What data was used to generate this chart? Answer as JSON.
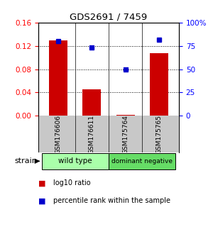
{
  "title": "GDS2691 / 7459",
  "samples": [
    "GSM176606",
    "GSM176611",
    "GSM175764",
    "GSM175765"
  ],
  "log10_ratio": [
    0.13,
    0.045,
    0.001,
    0.108
  ],
  "percentile_rank": [
    80,
    73,
    50,
    82
  ],
  "bar_color": "#cc0000",
  "dot_color": "#0000cc",
  "ylim_left": [
    0,
    0.16
  ],
  "ylim_right": [
    0,
    100
  ],
  "yticks_left": [
    0,
    0.04,
    0.08,
    0.12,
    0.16
  ],
  "yticks_right": [
    0,
    25,
    50,
    75,
    100
  ],
  "ytick_labels_right": [
    "0",
    "25",
    "50",
    "75",
    "100%"
  ],
  "groups": [
    {
      "label": "wild type",
      "samples": [
        0,
        1
      ],
      "color": "#aaffaa"
    },
    {
      "label": "dominant negative",
      "samples": [
        2,
        3
      ],
      "color": "#66dd66"
    }
  ],
  "strain_label": "strain",
  "legend_items": [
    {
      "color": "#cc0000",
      "label": "log10 ratio"
    },
    {
      "color": "#0000cc",
      "label": "percentile rank within the sample"
    }
  ],
  "bar_width": 0.55,
  "background_color": "#ffffff",
  "label_bg": "#c8c8c8"
}
